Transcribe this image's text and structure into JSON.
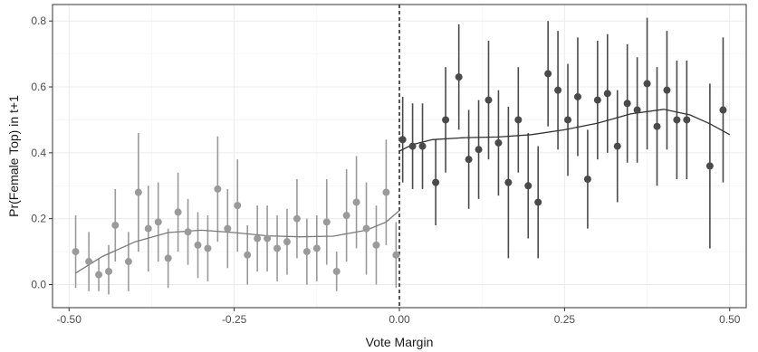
{
  "chart_data": {
    "type": "scatter",
    "title": "",
    "xlabel": "Vote Margin",
    "ylabel": "Pr(Female Top) in t+1",
    "xlim": [
      -0.525,
      0.525
    ],
    "ylim": [
      -0.07,
      0.85
    ],
    "x_ticks": [
      -0.5,
      -0.25,
      0.0,
      0.25,
      0.5
    ],
    "x_tick_labels": [
      "-0.50",
      "-0.25",
      "0.00",
      "0.25",
      "0.50"
    ],
    "y_ticks": [
      0.0,
      0.2,
      0.4,
      0.6,
      0.8
    ],
    "y_tick_labels": [
      "0.0",
      "0.2",
      "0.4",
      "0.6",
      "0.8"
    ],
    "grid": true,
    "cutoff": 0.0,
    "colors": {
      "left": "#9a9a9a",
      "right": "#4a4a4a",
      "fit_left": "#7a7a7a",
      "fit_right": "#333333"
    },
    "series": [
      {
        "side": "left",
        "points": [
          {
            "x": -0.49,
            "y": 0.1,
            "lo": -0.01,
            "hi": 0.21
          },
          {
            "x": -0.47,
            "y": 0.07,
            "lo": -0.02,
            "hi": 0.16
          },
          {
            "x": -0.455,
            "y": 0.03,
            "lo": -0.02,
            "hi": 0.08
          },
          {
            "x": -0.44,
            "y": 0.04,
            "lo": -0.03,
            "hi": 0.12
          },
          {
            "x": -0.43,
            "y": 0.18,
            "lo": 0.07,
            "hi": 0.29
          },
          {
            "x": -0.41,
            "y": 0.07,
            "lo": -0.02,
            "hi": 0.16
          },
          {
            "x": -0.395,
            "y": 0.28,
            "lo": 0.1,
            "hi": 0.46
          },
          {
            "x": -0.38,
            "y": 0.17,
            "lo": 0.04,
            "hi": 0.3
          },
          {
            "x": -0.365,
            "y": 0.19,
            "lo": 0.07,
            "hi": 0.31
          },
          {
            "x": -0.35,
            "y": 0.08,
            "lo": -0.01,
            "hi": 0.17
          },
          {
            "x": -0.335,
            "y": 0.22,
            "lo": 0.1,
            "hi": 0.34
          },
          {
            "x": -0.32,
            "y": 0.16,
            "lo": 0.06,
            "hi": 0.26
          },
          {
            "x": -0.305,
            "y": 0.12,
            "lo": 0.02,
            "hi": 0.22
          },
          {
            "x": -0.29,
            "y": 0.11,
            "lo": 0.01,
            "hi": 0.21
          },
          {
            "x": -0.275,
            "y": 0.29,
            "lo": 0.13,
            "hi": 0.45
          },
          {
            "x": -0.26,
            "y": 0.17,
            "lo": 0.05,
            "hi": 0.29
          },
          {
            "x": -0.245,
            "y": 0.24,
            "lo": 0.1,
            "hi": 0.38
          },
          {
            "x": -0.23,
            "y": 0.09,
            "lo": 0.0,
            "hi": 0.18
          },
          {
            "x": -0.215,
            "y": 0.14,
            "lo": 0.04,
            "hi": 0.24
          },
          {
            "x": -0.2,
            "y": 0.14,
            "lo": 0.04,
            "hi": 0.24
          },
          {
            "x": -0.185,
            "y": 0.11,
            "lo": 0.01,
            "hi": 0.21
          },
          {
            "x": -0.17,
            "y": 0.13,
            "lo": 0.03,
            "hi": 0.23
          },
          {
            "x": -0.155,
            "y": 0.2,
            "lo": 0.08,
            "hi": 0.32
          },
          {
            "x": -0.14,
            "y": 0.1,
            "lo": 0.0,
            "hi": 0.2
          },
          {
            "x": -0.125,
            "y": 0.11,
            "lo": 0.01,
            "hi": 0.21
          },
          {
            "x": -0.11,
            "y": 0.19,
            "lo": 0.06,
            "hi": 0.32
          },
          {
            "x": -0.095,
            "y": 0.04,
            "lo": -0.02,
            "hi": 0.1
          },
          {
            "x": -0.08,
            "y": 0.21,
            "lo": 0.07,
            "hi": 0.35
          },
          {
            "x": -0.065,
            "y": 0.25,
            "lo": 0.11,
            "hi": 0.39
          },
          {
            "x": -0.05,
            "y": 0.17,
            "lo": 0.03,
            "hi": 0.31
          },
          {
            "x": -0.035,
            "y": 0.12,
            "lo": 0.0,
            "hi": 0.24
          },
          {
            "x": -0.02,
            "y": 0.28,
            "lo": 0.12,
            "hi": 0.44
          },
          {
            "x": -0.005,
            "y": 0.09,
            "lo": -0.01,
            "hi": 0.19
          }
        ],
        "fit": [
          [
            -0.49,
            0.035
          ],
          [
            -0.45,
            0.085
          ],
          [
            -0.4,
            0.13
          ],
          [
            -0.35,
            0.158
          ],
          [
            -0.3,
            0.165
          ],
          [
            -0.25,
            0.158
          ],
          [
            -0.2,
            0.148
          ],
          [
            -0.15,
            0.145
          ],
          [
            -0.1,
            0.147
          ],
          [
            -0.05,
            0.165
          ],
          [
            -0.02,
            0.19
          ],
          [
            0.0,
            0.225
          ]
        ]
      },
      {
        "side": "right",
        "points": [
          {
            "x": 0.005,
            "y": 0.44,
            "lo": 0.31,
            "hi": 0.57
          },
          {
            "x": 0.02,
            "y": 0.42,
            "lo": 0.29,
            "hi": 0.55
          },
          {
            "x": 0.035,
            "y": 0.42,
            "lo": 0.29,
            "hi": 0.55
          },
          {
            "x": 0.055,
            "y": 0.31,
            "lo": 0.18,
            "hi": 0.44
          },
          {
            "x": 0.07,
            "y": 0.5,
            "lo": 0.34,
            "hi": 0.66
          },
          {
            "x": 0.09,
            "y": 0.63,
            "lo": 0.47,
            "hi": 0.79
          },
          {
            "x": 0.105,
            "y": 0.38,
            "lo": 0.23,
            "hi": 0.53
          },
          {
            "x": 0.12,
            "y": 0.41,
            "lo": 0.26,
            "hi": 0.56
          },
          {
            "x": 0.135,
            "y": 0.56,
            "lo": 0.38,
            "hi": 0.74
          },
          {
            "x": 0.15,
            "y": 0.43,
            "lo": 0.27,
            "hi": 0.59
          },
          {
            "x": 0.165,
            "y": 0.31,
            "lo": 0.08,
            "hi": 0.54
          },
          {
            "x": 0.18,
            "y": 0.5,
            "lo": 0.34,
            "hi": 0.66
          },
          {
            "x": 0.195,
            "y": 0.3,
            "lo": 0.14,
            "hi": 0.46
          },
          {
            "x": 0.21,
            "y": 0.25,
            "lo": 0.08,
            "hi": 0.42
          },
          {
            "x": 0.225,
            "y": 0.64,
            "lo": 0.48,
            "hi": 0.8
          },
          {
            "x": 0.24,
            "y": 0.59,
            "lo": 0.41,
            "hi": 0.77
          },
          {
            "x": 0.255,
            "y": 0.5,
            "lo": 0.33,
            "hi": 0.67
          },
          {
            "x": 0.27,
            "y": 0.57,
            "lo": 0.39,
            "hi": 0.75
          },
          {
            "x": 0.285,
            "y": 0.32,
            "lo": 0.17,
            "hi": 0.47
          },
          {
            "x": 0.3,
            "y": 0.56,
            "lo": 0.38,
            "hi": 0.74
          },
          {
            "x": 0.315,
            "y": 0.58,
            "lo": 0.4,
            "hi": 0.76
          },
          {
            "x": 0.33,
            "y": 0.42,
            "lo": 0.25,
            "hi": 0.59
          },
          {
            "x": 0.345,
            "y": 0.55,
            "lo": 0.37,
            "hi": 0.73
          },
          {
            "x": 0.36,
            "y": 0.53,
            "lo": 0.37,
            "hi": 0.69
          },
          {
            "x": 0.375,
            "y": 0.61,
            "lo": 0.41,
            "hi": 0.81
          },
          {
            "x": 0.39,
            "y": 0.48,
            "lo": 0.3,
            "hi": 0.66
          },
          {
            "x": 0.405,
            "y": 0.59,
            "lo": 0.41,
            "hi": 0.77
          },
          {
            "x": 0.42,
            "y": 0.5,
            "lo": 0.32,
            "hi": 0.68
          },
          {
            "x": 0.435,
            "y": 0.5,
            "lo": 0.32,
            "hi": 0.68
          },
          {
            "x": 0.47,
            "y": 0.36,
            "lo": 0.11,
            "hi": 0.61
          },
          {
            "x": 0.49,
            "y": 0.53,
            "lo": 0.31,
            "hi": 0.75
          }
        ],
        "fit": [
          [
            0.0,
            0.405
          ],
          [
            0.02,
            0.425
          ],
          [
            0.05,
            0.44
          ],
          [
            0.1,
            0.446
          ],
          [
            0.15,
            0.448
          ],
          [
            0.2,
            0.455
          ],
          [
            0.25,
            0.47
          ],
          [
            0.3,
            0.49
          ],
          [
            0.35,
            0.518
          ],
          [
            0.4,
            0.532
          ],
          [
            0.44,
            0.515
          ],
          [
            0.47,
            0.488
          ],
          [
            0.5,
            0.455
          ]
        ]
      }
    ]
  }
}
